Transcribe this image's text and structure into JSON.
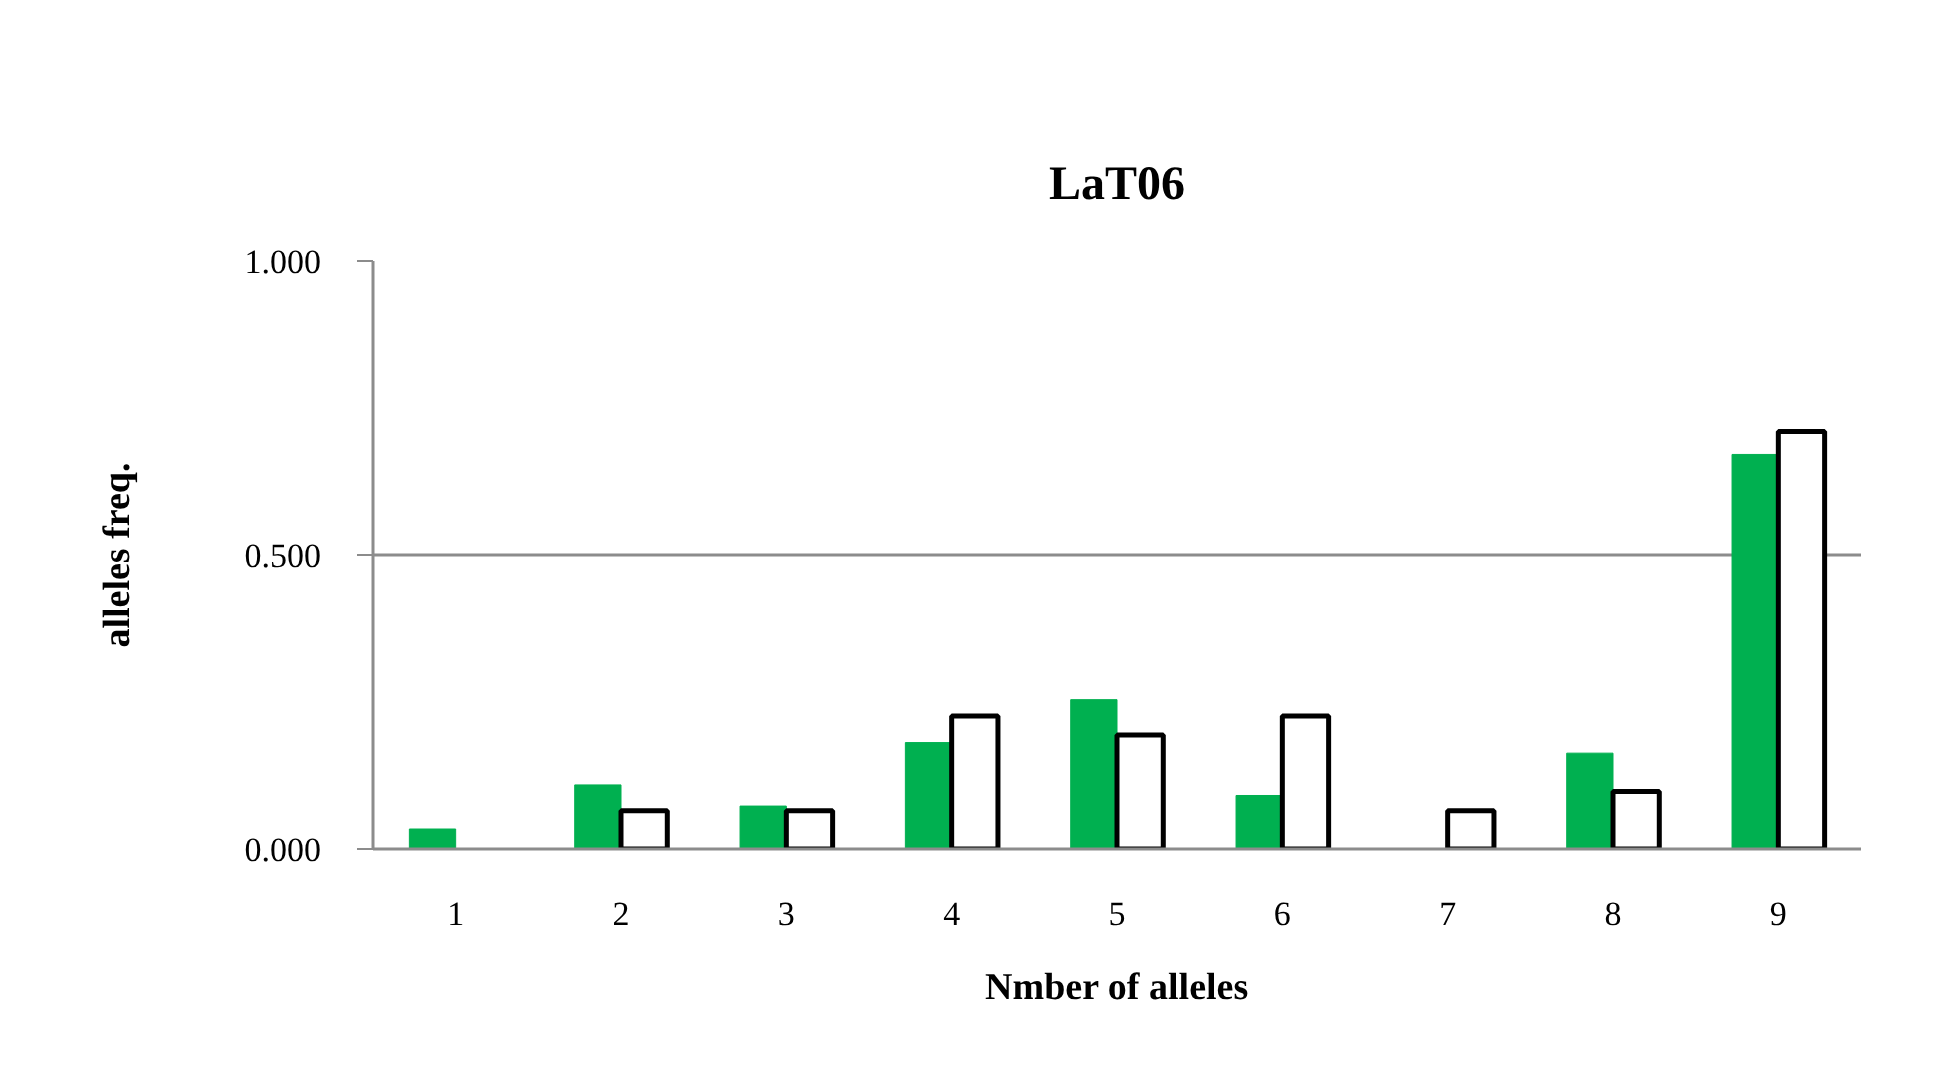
{
  "chart_data": {
    "type": "bar",
    "title": "LaT06",
    "xlabel": "Nmber of alleles",
    "ylabel": "alleles freq.",
    "categories": [
      "1",
      "2",
      "3",
      "4",
      "5",
      "6",
      "7",
      "8",
      "9"
    ],
    "series": [
      {
        "color": "#00b050",
        "values": [
          0.034,
          0.109,
          0.073,
          0.181,
          0.254,
          0.091,
          null,
          0.163,
          0.671
        ]
      },
      {
        "color": "#ffffff",
        "values": [
          null,
          0.065,
          0.065,
          0.226,
          0.194,
          0.226,
          0.065,
          0.098,
          0.71
        ]
      }
    ],
    "ylim": [
      0,
      1
    ],
    "yticks": [
      {
        "value": 0,
        "label": "0.000"
      },
      {
        "value": 0.5,
        "label": "0.500"
      },
      {
        "value": 1,
        "label": "1.000"
      }
    ],
    "grid": "y"
  }
}
